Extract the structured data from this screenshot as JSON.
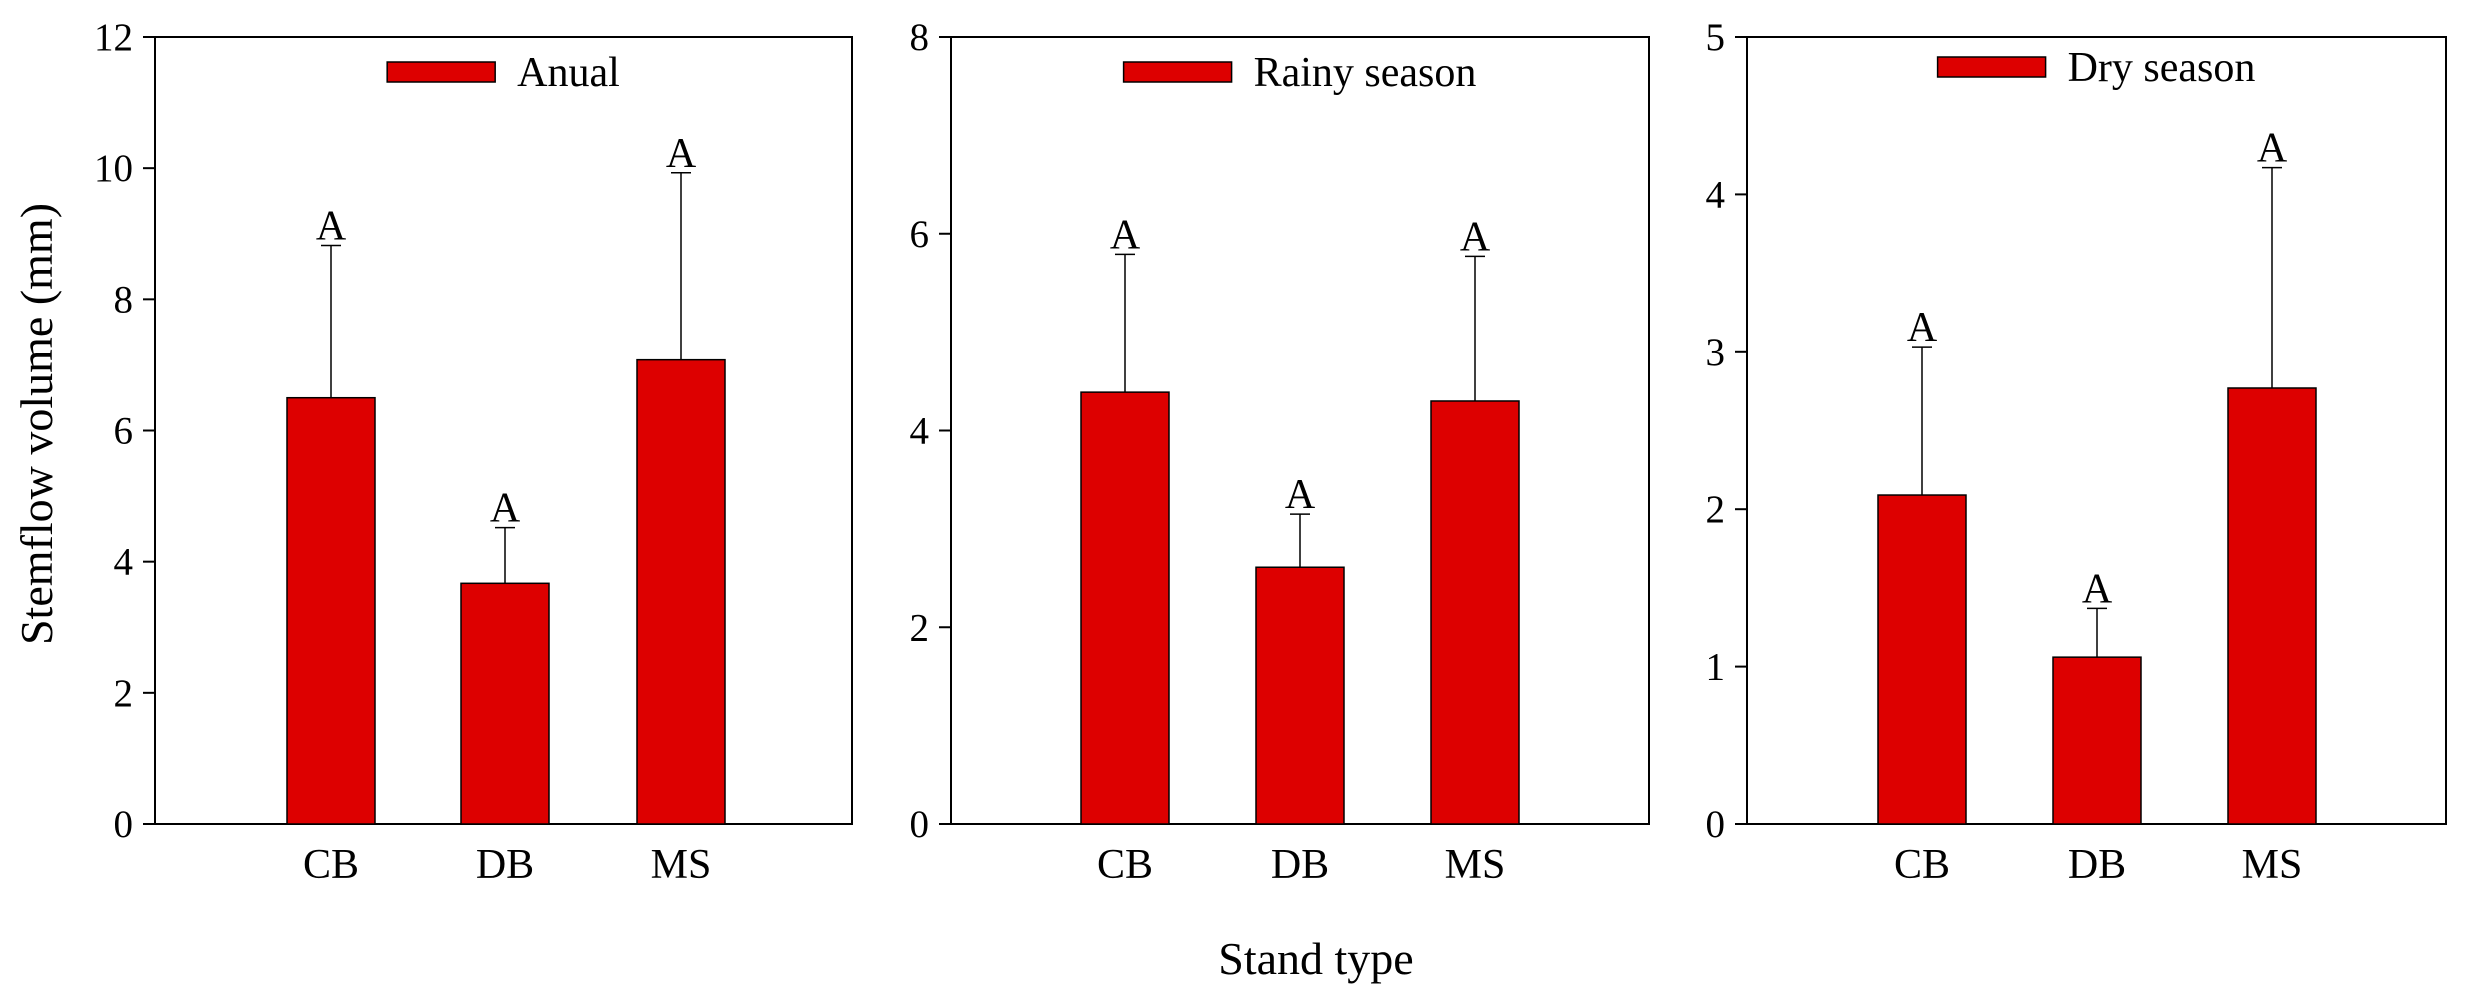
{
  "figure": {
    "ylabel": "Stemflow volume (mm)",
    "xlabel": "Stand type",
    "bar_color": "#DD0000",
    "errorbar_color": "#000000"
  },
  "chart_data": [
    {
      "type": "bar",
      "title": "",
      "legend": "Anual",
      "categories": [
        "CB",
        "DB",
        "MS"
      ],
      "values": [
        6.5,
        3.67,
        7.08
      ],
      "error_upper": [
        8.82,
        4.52,
        9.93
      ],
      "significance": [
        "A",
        "A",
        "A"
      ],
      "yticks": [
        0,
        2,
        4,
        6,
        8,
        10,
        12
      ],
      "ylim": [
        0,
        12
      ],
      "xlabel": "",
      "ylabel": "Stemflow volume (mm)"
    },
    {
      "type": "bar",
      "title": "",
      "legend": "Rainy season",
      "categories": [
        "CB",
        "DB",
        "MS"
      ],
      "values": [
        4.39,
        2.61,
        4.3
      ],
      "error_upper": [
        5.79,
        3.15,
        5.77
      ],
      "significance": [
        "A",
        "A",
        "A"
      ],
      "yticks": [
        0,
        2,
        4,
        6,
        8
      ],
      "ylim": [
        0,
        8
      ],
      "xlabel": "Stand type",
      "ylabel": ""
    },
    {
      "type": "bar",
      "title": "",
      "legend": "Dry  season",
      "categories": [
        "CB",
        "DB",
        "MS"
      ],
      "values": [
        2.09,
        1.06,
        2.77
      ],
      "error_upper": [
        3.03,
        1.37,
        4.17
      ],
      "significance": [
        "A",
        "A",
        "A"
      ],
      "yticks": [
        0,
        1,
        2,
        3,
        4,
        5
      ],
      "ylim": [
        0,
        5
      ],
      "xlabel": "",
      "ylabel": ""
    }
  ]
}
